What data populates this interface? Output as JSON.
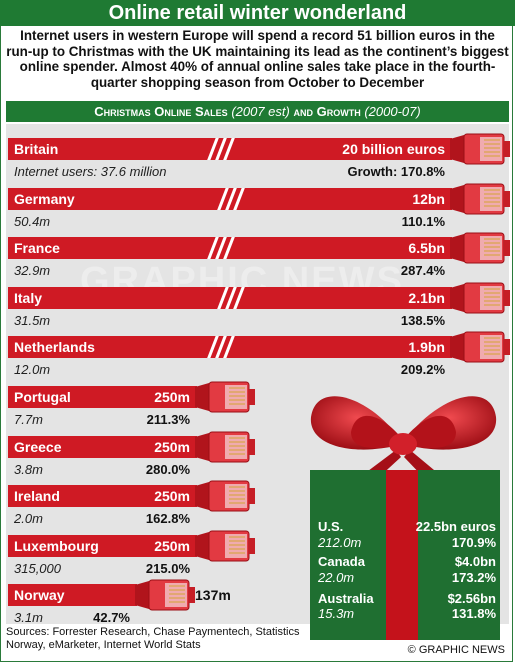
{
  "title": "Online retail winter wonderland",
  "intro": "Internet users in western Europe will spend a record 51 billion euros in the run-up to Christmas with the UK maintaining its lead as the continent’s biggest online spender. Almost 40% of annual online sales take place in the fourth-quarter shopping season from October to December",
  "subtitle_main": "Christmas Online Sales",
  "subtitle_est": "(2007 est)",
  "subtitle_and": "and Growth",
  "subtitle_years": "(2000-07)",
  "colors": {
    "green": "#1f7a33",
    "red": "#cf1a24",
    "panel": "#e4e4e4"
  },
  "chart_data": {
    "type": "bar",
    "title": "Christmas Online Sales (2007 est) and Growth (2000-07)",
    "unit": "billion euros",
    "categories": [
      "Britain",
      "Germany",
      "France",
      "Italy",
      "Netherlands",
      "Portugal",
      "Greece",
      "Ireland",
      "Luxembourg",
      "Norway"
    ],
    "values": [
      20,
      12,
      6.5,
      2.1,
      1.9,
      0.25,
      0.25,
      0.25,
      0.25,
      0.137
    ],
    "value_labels": [
      "20 billion euros",
      "12bn",
      "6.5bn",
      "2.1bn",
      "1.9bn",
      "250m",
      "250m",
      "250m",
      "250m",
      "137m"
    ],
    "users": [
      "Internet users: 37.6 million",
      "50.4m",
      "32.9m",
      "31.5m",
      "12.0m",
      "7.7m",
      "3.8m",
      "2.0m",
      "315,000",
      "3.1m"
    ],
    "growth": [
      "Growth: 170.8%",
      "110.1%",
      "287.4%",
      "138.5%",
      "209.2%",
      "211.3%",
      "280.0%",
      "162.8%",
      "215.0%",
      "42.7%"
    ],
    "gift_box": [
      {
        "country": "U.S.",
        "sales": "22.5bn euros",
        "users": "212.0m",
        "growth": "170.9%"
      },
      {
        "country": "Canada",
        "sales": "$4.0bn",
        "users": "22.0m",
        "growth": "173.2%"
      },
      {
        "country": "Australia",
        "sales": "$2.56bn",
        "users": "15.3m",
        "growth": "131.8%"
      }
    ]
  },
  "watermark": "GRAPHIC NEWS",
  "sources": "Sources: Forrester Research, Chase Paymentech, Statistics Norway, eMarketer, Internet World Stats",
  "copyright": "© GRAPHIC NEWS"
}
